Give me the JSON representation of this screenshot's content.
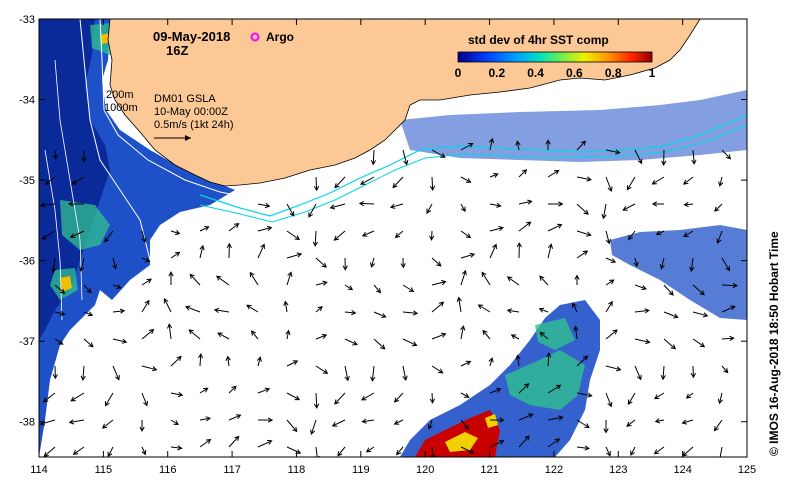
{
  "map": {
    "date_label": "09-May-2018",
    "hour_label": "16Z",
    "argo_label": "Argo",
    "colorbar": {
      "title": "std dev of 4hr SST comp",
      "tick_labels": [
        "0",
        "0.2",
        "0.4",
        "0.6",
        "0.8",
        "1"
      ],
      "colors": [
        "#0000a0",
        "#0050ff",
        "#00b4ff",
        "#40e0a0",
        "#a0f040",
        "#f0f000",
        "#ffa000",
        "#ff3000",
        "#c00000",
        "#800000"
      ]
    },
    "info": {
      "product": "DM01 GSLA",
      "valid_time": "10-May 00:00Z",
      "scale_text": "0.5m/s (1kt 24h)"
    },
    "contour_labels": [
      "200m",
      "1000m"
    ],
    "lat_labels": [
      "-33",
      "-34",
      "-35",
      "-36",
      "-37",
      "-38"
    ],
    "lon_labels": [
      "114",
      "115",
      "116",
      "117",
      "118",
      "119",
      "120",
      "121",
      "122",
      "123",
      "124",
      "125"
    ],
    "credit": "© IMOS 16-Aug-2018 18:50 Hobart Time",
    "colors": {
      "land": "#fbc896",
      "argo": "#ff00ff",
      "shelf_contour": "#00d8e8",
      "depth_contour": "#ffffff"
    }
  }
}
